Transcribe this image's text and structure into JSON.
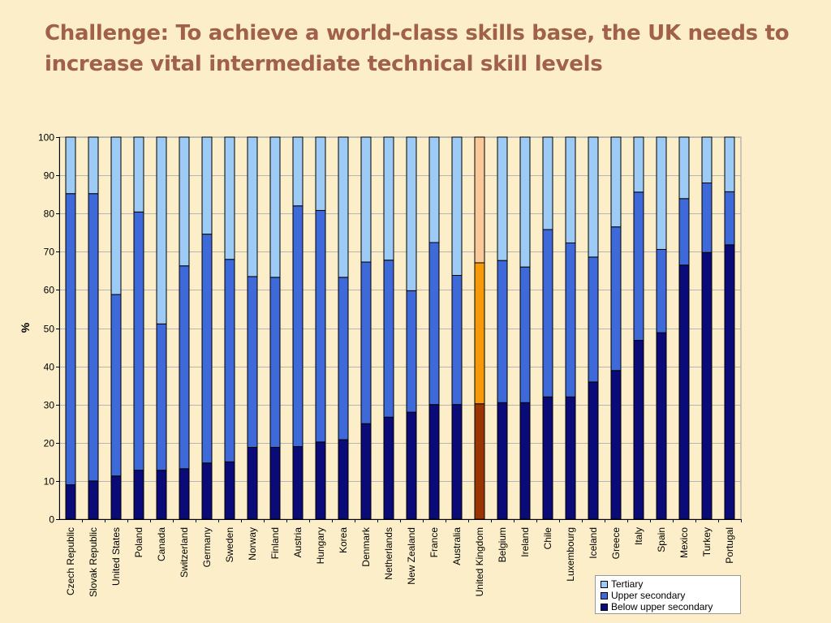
{
  "slide": {
    "title": "Challenge: To achieve a world-class skills base, the UK needs to increase vital intermediate technical skill levels"
  },
  "colors": {
    "tertiary": "#9dcbf5",
    "upper_secondary": "#3e69d9",
    "below_upper_secondary": "#0a0a78",
    "highlight_tertiary": "#fbc89a",
    "highlight_upper_secondary": "#f79a0a",
    "highlight_below_upper_secondary": "#9b3403",
    "background": "#fbeec8",
    "title": "#a0604a"
  },
  "chart_data": {
    "type": "bar",
    "stacked": true,
    "ylabel": "%",
    "xlabel": "",
    "ylim": [
      0,
      100
    ],
    "yticks": [
      0,
      10,
      20,
      30,
      40,
      50,
      60,
      70,
      80,
      90,
      100
    ],
    "grid": true,
    "legend_position": "bottom-right",
    "highlight_category": "United Kingdom",
    "categories": [
      "Czech Republic",
      "Slovak Republic",
      "United States",
      "Poland",
      "Canada",
      "Switzerland",
      "Germany",
      "Sweden",
      "Norway",
      "Finland",
      "Austria",
      "Hungary",
      "Korea",
      "Denmark",
      "Netherlands",
      "New Zealand",
      "France",
      "Australia",
      "United Kingdom",
      "Belgium",
      "Ireland",
      "Chile",
      "Luxembourg",
      "Iceland",
      "Greece",
      "Italy",
      "Spain",
      "Mexico",
      "Turkey",
      "Portugal"
    ],
    "series": [
      {
        "name": "Below upper secondary",
        "values": [
          9,
          10,
          11.3,
          12.8,
          12.8,
          13.2,
          14.7,
          15,
          18.8,
          18.8,
          19,
          20.2,
          20.8,
          25,
          26.7,
          28,
          30,
          30,
          30.2,
          30.5,
          30.5,
          32,
          32,
          35.9,
          38.9,
          46.8,
          48.8,
          66.5,
          69.8,
          71.8
        ]
      },
      {
        "name": "Upper secondary",
        "values": [
          76.2,
          75.2,
          47.5,
          67.6,
          38.3,
          53.1,
          59.9,
          53,
          44.7,
          44.5,
          63,
          60.6,
          42.5,
          42.3,
          41.1,
          31.8,
          42.4,
          33.8,
          36.9,
          37.2,
          35.5,
          43.8,
          40.3,
          32.7,
          37.6,
          38.8,
          21.8,
          17.4,
          18.2,
          13.9
        ]
      },
      {
        "name": "Tertiary",
        "values": [
          14.8,
          14.8,
          41.2,
          19.6,
          48.9,
          33.7,
          25.4,
          32,
          36.5,
          36.7,
          18,
          19.2,
          36.7,
          32.7,
          32.2,
          40.2,
          27.6,
          36.2,
          32.9,
          32.3,
          34,
          24.2,
          27.7,
          31.4,
          23.5,
          14.4,
          29.4,
          16.1,
          12,
          14.3
        ]
      }
    ]
  },
  "legend": {
    "items": [
      {
        "label": "Tertiary"
      },
      {
        "label": "Upper secondary"
      },
      {
        "label": "Below upper secondary"
      }
    ]
  }
}
